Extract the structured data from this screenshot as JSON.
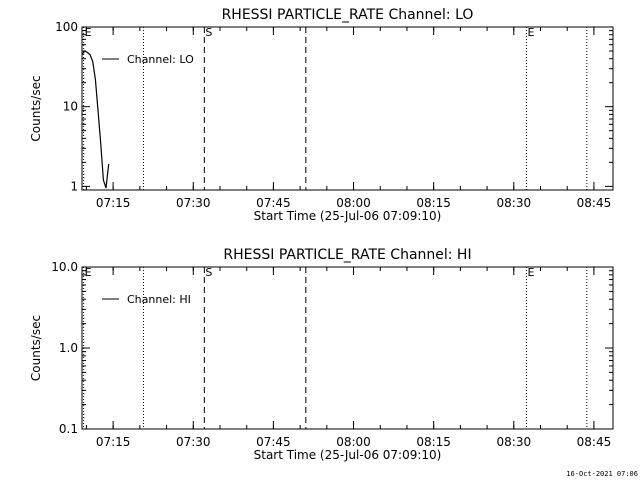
{
  "footer": {
    "timestamp": "16-Oct-2021 07:06"
  },
  "chart_data": [
    {
      "type": "line",
      "title": "RHESSI PARTICLE_RATE Channel: LO",
      "xlabel": "Start Time (25-Jul-06 07:09:10)",
      "ylabel": "Counts/sec",
      "x_unit": "minutes since 07:09:10",
      "x_tick_labels": [
        "07:15",
        "07:30",
        "07:45",
        "08:00",
        "08:15",
        "08:30",
        "08:45"
      ],
      "x_tick_values": [
        5.83,
        20.83,
        35.83,
        50.83,
        65.83,
        80.83,
        95.83
      ],
      "xlim": [
        0,
        99.4
      ],
      "y_scale": "log",
      "ylim": [
        0.9,
        100
      ],
      "y_tick_labels": [
        "1",
        "10",
        "100"
      ],
      "y_tick_values": [
        1,
        10,
        100
      ],
      "legend": {
        "placement": "top-left",
        "entries": [
          "Channel: LO"
        ]
      },
      "series": [
        {
          "name": "Channel: LO",
          "x": [
            0,
            0.5,
            1.0,
            1.5,
            2.0,
            2.5,
            3.0,
            3.5,
            4.0,
            4.5,
            5.0
          ],
          "y": [
            45,
            50,
            48,
            45,
            37,
            22,
            9,
            3.5,
            1.2,
            0.95,
            1.9
          ]
        }
      ],
      "vertical_markers": [
        {
          "label": "E",
          "x": 0.3,
          "style": "dotted"
        },
        {
          "label": "",
          "x": 11.5,
          "style": "dotted"
        },
        {
          "label": "S",
          "x": 22.9,
          "style": "dashed"
        },
        {
          "label": "",
          "x": 41.9,
          "style": "dashed"
        },
        {
          "label": "E",
          "x": 83.2,
          "style": "dotted"
        },
        {
          "label": "",
          "x": 94.5,
          "style": "dotted"
        }
      ]
    },
    {
      "type": "line",
      "title": "RHESSI PARTICLE_RATE Channel: HI",
      "xlabel": "Start Time (25-Jul-06 07:09:10)",
      "ylabel": "Counts/sec",
      "x_unit": "minutes since 07:09:10",
      "x_tick_labels": [
        "07:15",
        "07:30",
        "07:45",
        "08:00",
        "08:15",
        "08:30",
        "08:45"
      ],
      "x_tick_values": [
        5.83,
        20.83,
        35.83,
        50.83,
        65.83,
        80.83,
        95.83
      ],
      "xlim": [
        0,
        99.4
      ],
      "y_scale": "log",
      "ylim": [
        0.1,
        10
      ],
      "y_tick_labels": [
        "0.1",
        "1.0",
        "10.0"
      ],
      "y_tick_values": [
        0.1,
        1,
        10
      ],
      "legend": {
        "placement": "top-left",
        "entries": [
          "Channel: HI"
        ]
      },
      "series": [
        {
          "name": "Channel: HI",
          "x": [],
          "y": []
        }
      ],
      "vertical_markers": [
        {
          "label": "E",
          "x": 0.3,
          "style": "dotted"
        },
        {
          "label": "",
          "x": 11.5,
          "style": "dotted"
        },
        {
          "label": "S",
          "x": 22.9,
          "style": "dashed"
        },
        {
          "label": "",
          "x": 41.9,
          "style": "dashed"
        },
        {
          "label": "E",
          "x": 83.2,
          "style": "dotted"
        },
        {
          "label": "",
          "x": 94.5,
          "style": "dotted"
        }
      ]
    }
  ]
}
